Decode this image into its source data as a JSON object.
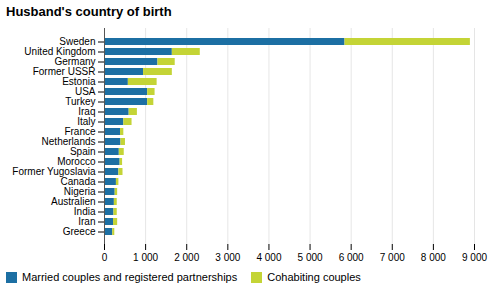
{
  "chart_data": {
    "type": "bar",
    "orientation": "horizontal",
    "stacked": true,
    "title": "Husband's country of birth",
    "categories": [
      "Greece",
      "Iran",
      "India",
      "Australien",
      "Nigeria",
      "Canada",
      "Former Yugoslavia",
      "Morocco",
      "Spain",
      "Netherlands",
      "France",
      "Italy",
      "Iraq",
      "Turkey",
      "USA",
      "Estonia",
      "Former USSR",
      "Germany",
      "United Kingdom",
      "Sweden"
    ],
    "series": [
      {
        "name": "Married couples and registered partnerships",
        "color": "#1c6fa3",
        "values": [
          200,
          220,
          230,
          240,
          260,
          290,
          350,
          380,
          360,
          400,
          390,
          470,
          600,
          1050,
          1050,
          580,
          950,
          1300,
          1650,
          5850
        ]
      },
      {
        "name": "Cohabiting couples",
        "color": "#c4d436",
        "values": [
          50,
          100,
          80,
          70,
          60,
          60,
          100,
          60,
          120,
          110,
          80,
          200,
          200,
          150,
          180,
          700,
          700,
          420,
          680,
          3050
        ]
      }
    ],
    "xlim": [
      0,
      9000
    ],
    "xticks": [
      0,
      {
        "value": 1000,
        "label": "1 000"
      },
      {
        "value": 2000,
        "label": "2 000"
      },
      {
        "value": 3000,
        "label": "3 000"
      },
      {
        "value": 4000,
        "label": "4 000"
      },
      {
        "value": 5000,
        "label": "5 000"
      },
      {
        "value": 6000,
        "label": "6 000"
      },
      {
        "value": 7000,
        "label": "7 000"
      },
      {
        "value": 8000,
        "label": "8 000"
      },
      {
        "value": 9000,
        "label": "9 000"
      }
    ],
    "grid": true,
    "legend": "bottom"
  }
}
